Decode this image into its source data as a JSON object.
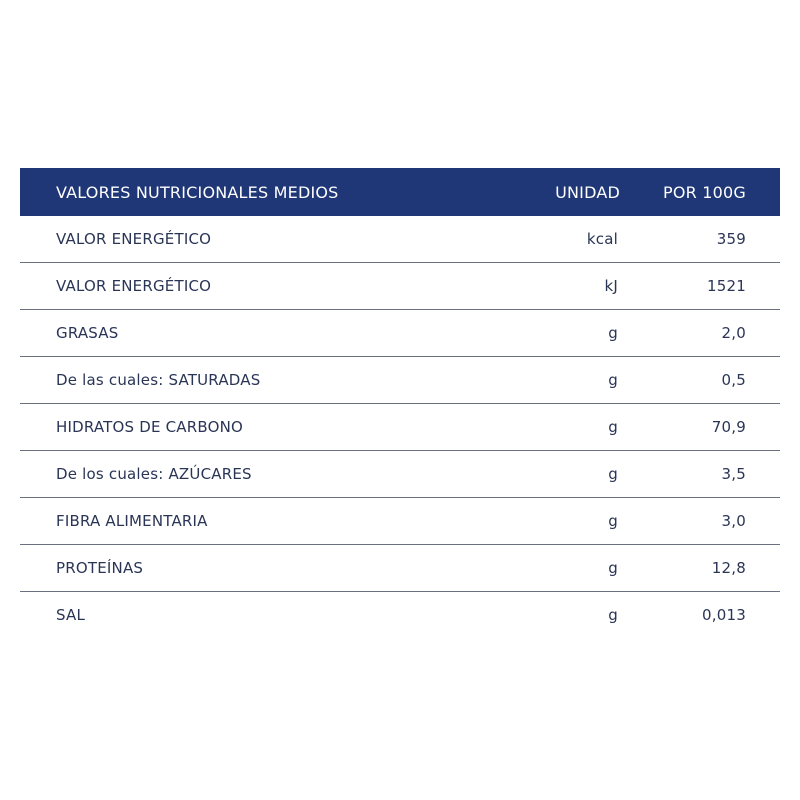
{
  "table": {
    "header": {
      "name": "VALORES NUTRICIONALES MEDIOS",
      "unit": "UNIDAD",
      "value": "POR 100G"
    },
    "rows": [
      {
        "name": "VALOR ENERGÉTICO",
        "unit": "kcal",
        "value": "359"
      },
      {
        "name": "VALOR ENERGÉTICO",
        "unit": "kJ",
        "value": "1521"
      },
      {
        "name": "GRASAS",
        "unit": "g",
        "value": "2,0"
      },
      {
        "name": "De las cuales: SATURADAS",
        "unit": "g",
        "value": "0,5"
      },
      {
        "name": "HIDRATOS DE CARBONO",
        "unit": "g",
        "value": "70,9"
      },
      {
        "name": "De los cuales: AZÚCARES",
        "unit": "g",
        "value": "3,5"
      },
      {
        "name": "FIBRA ALIMENTARIA",
        "unit": "g",
        "value": "3,0"
      },
      {
        "name": "PROTEÍNAS",
        "unit": "g",
        "value": "12,8"
      },
      {
        "name": "SAL",
        "unit": "g",
        "value": "0,013"
      }
    ]
  },
  "colors": {
    "header_background": "#1f3777",
    "header_text": "#ffffff",
    "body_text": "#2a3556",
    "row_divider": "#6b7080"
  }
}
